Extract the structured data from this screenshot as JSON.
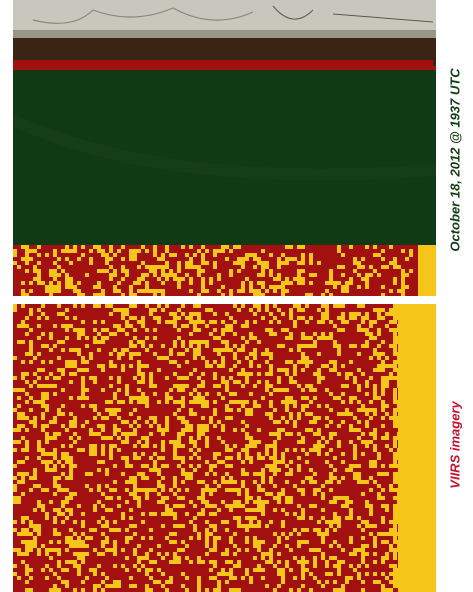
{
  "labels": {
    "date_prefix": "October 18, 2012 @ 1937 UTC",
    "product": "VIIRS imagery"
  },
  "colors": {
    "label_dark_green": "#123d12",
    "label_orange": "#d4820a",
    "label_red": "#c8102e",
    "pixel_red": "#a31010",
    "pixel_yellow": "#f5c518",
    "true_color_green": "#0f3a14",
    "cloud_gray": "#c9c6bd"
  },
  "panels": [
    {
      "name": "true-color-and-mask-panel",
      "content": "satellite image over land with classification mask"
    },
    {
      "name": "classification-mask-panel",
      "content": "red and yellow pixel classification mask"
    }
  ]
}
